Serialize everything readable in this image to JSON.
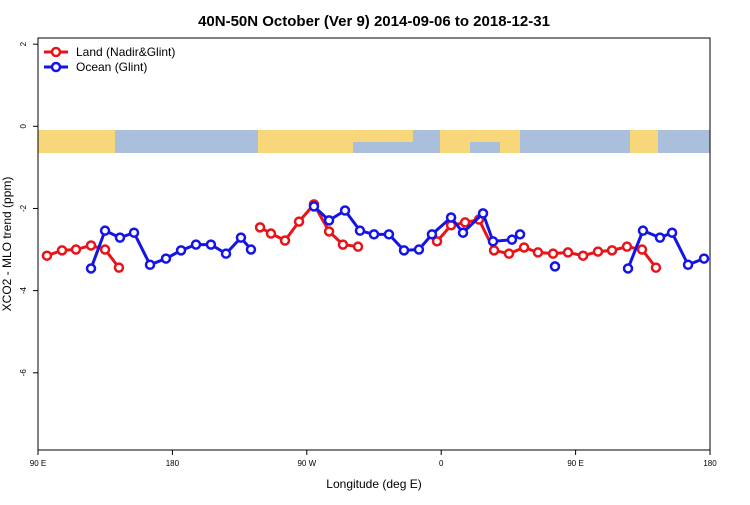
{
  "chart_data": {
    "type": "line",
    "title": "40N-50N October (Ver 9)   2014-09-06 to 2018-12-31",
    "x_label": "Longitude (deg E)",
    "y_label": "XCO2 - MLO trend (ppm)",
    "xlim": [
      90,
      540
    ],
    "ylim": [
      -7.88,
      2.15
    ],
    "xticks": [
      {
        "value": 90,
        "label": "90 E"
      },
      {
        "value": 180,
        "label": "180"
      },
      {
        "value": 270,
        "label": "90 W"
      },
      {
        "value": 360,
        "label": "0"
      },
      {
        "value": 450,
        "label": "90 E"
      },
      {
        "value": 540,
        "label": "180"
      }
    ],
    "yticks": [
      2,
      0,
      -2,
      -4,
      -6
    ],
    "legend": "top-left",
    "series": [
      {
        "name": "Land (Nadir&Glint)",
        "color": "#e8141a",
        "x": [
          96.0,
          106.1,
          115.4,
          125.5,
          134.9,
          144.2,
          null,
          238.7,
          246.0,
          255.4,
          264.8,
          274.8,
          284.9,
          294.2,
          304.3,
          null,
          357.2,
          366.6,
          376.0,
          385.3,
          395.4,
          405.4,
          415.5,
          424.8,
          434.9,
          444.9,
          455.0,
          465.0,
          474.4,
          484.4,
          494.5,
          503.8
        ],
        "values": [
          -3.15,
          -3.02,
          -3.0,
          -2.9,
          -3.0,
          -3.44,
          null,
          -2.46,
          -2.61,
          -2.78,
          -2.32,
          -1.9,
          -2.56,
          -2.88,
          -2.93,
          null,
          -2.8,
          -2.41,
          -2.34,
          -2.27,
          -3.02,
          -3.1,
          -2.95,
          -3.07,
          -3.1,
          -3.07,
          -3.15,
          -3.05,
          -3.02,
          -2.93,
          -3.0,
          -3.44
        ]
      },
      {
        "name": "Ocean (Glint)",
        "color": "#1414e6",
        "x": [
          125.5,
          134.9,
          144.9,
          154.3,
          165.0,
          175.7,
          185.8,
          195.8,
          205.8,
          215.9,
          225.9,
          232.6,
          null,
          274.8,
          284.9,
          295.6,
          305.6,
          315.0,
          325.0,
          335.1,
          345.1,
          353.8,
          366.6,
          374.6,
          388.0,
          394.7,
          407.4,
          412.8,
          null,
          436.2,
          null,
          485.1,
          495.1,
          506.5,
          514.6,
          525.3,
          536.0
        ],
        "values": [
          -3.46,
          -2.54,
          -2.71,
          -2.59,
          -3.37,
          -3.22,
          -3.02,
          -2.88,
          -2.88,
          -3.1,
          -2.71,
          -3.0,
          null,
          -1.95,
          -2.29,
          -2.05,
          -2.54,
          -2.63,
          -2.63,
          -3.02,
          -3.0,
          -2.63,
          -2.22,
          -2.59,
          -2.12,
          -2.8,
          -2.76,
          -2.63,
          null,
          -3.41,
          null,
          -3.46,
          -2.54,
          -2.71,
          -2.59,
          -3.37,
          -3.22
        ]
      }
    ]
  }
}
